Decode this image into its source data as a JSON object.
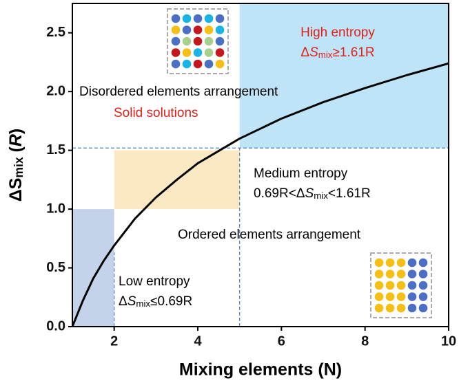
{
  "chart_data": {
    "type": "line",
    "x_label": "Mixing elements (N)",
    "y_label": [
      {
        "text": "ΔS"
      },
      {
        "text": "mix",
        "style": "sub"
      },
      {
        "text": " ("
      },
      {
        "text": "R",
        "style": "italic"
      },
      {
        "text": ")"
      }
    ],
    "x": [
      1,
      1.25,
      1.5,
      1.75,
      2,
      2.5,
      3,
      3.5,
      4,
      5,
      6,
      7,
      8,
      9,
      10
    ],
    "series": [
      {
        "color": "#000000",
        "values": [
          0,
          0.22,
          0.41,
          0.56,
          0.69,
          0.92,
          1.1,
          1.25,
          1.39,
          1.6,
          1.77,
          1.91,
          2.03,
          2.14,
          2.24
        ]
      }
    ],
    "xlim": [
      1,
      10
    ],
    "ylim": [
      0,
      2.75
    ],
    "xticks": [
      2,
      4,
      6,
      8,
      10
    ],
    "yticks": [
      {
        "value": 0,
        "label": "0.0"
      },
      {
        "value": 0.5,
        "label": "0.5"
      },
      {
        "value": 1,
        "label": "1.0"
      },
      {
        "value": 1.5,
        "label": "1.5"
      },
      {
        "value": 2,
        "label": "2.0"
      },
      {
        "value": 2.5,
        "label": "2.5"
      }
    ],
    "regions": [
      {
        "x": [
          1,
          2
        ],
        "y": [
          0,
          1
        ],
        "color": "#c5d3ea"
      },
      {
        "x": [
          2,
          5
        ],
        "y": [
          1,
          1.5
        ],
        "color": "#fbe9c4"
      },
      {
        "x": [
          5,
          10
        ],
        "y": [
          1.52,
          2.75
        ],
        "color": "#bfe4f7"
      }
    ],
    "guides": [
      {
        "x": [
          1,
          10
        ],
        "y": [
          1.52,
          1.52
        ]
      },
      {
        "x": [
          2,
          2
        ],
        "y": [
          0,
          0.63
        ]
      },
      {
        "x": [
          5,
          5
        ],
        "y": [
          0,
          1.52
        ]
      }
    ],
    "guide_color": "#4a7fc1",
    "annotations": [
      {
        "color": "#e0201b",
        "lines": [
          [
            {
              "text": "High entropy"
            }
          ],
          [
            {
              "text": "Δ"
            },
            {
              "text": "S",
              "style": "italic"
            },
            {
              "text": "mix",
              "style": "sub"
            },
            {
              "text": "≥1.61R"
            }
          ]
        ]
      },
      {
        "color": "#000000",
        "lines": [
          [
            {
              "text": "Disordered elements arrangement"
            }
          ]
        ]
      },
      {
        "color": "#e0201b",
        "lines": [
          [
            {
              "text": "Solid solutions"
            }
          ]
        ]
      },
      {
        "color": "#000000",
        "lines": [
          [
            {
              "text": "Medium entropy"
            }
          ],
          [
            {
              "text": "0.69R<Δ"
            },
            {
              "text": "S",
              "style": "italic"
            },
            {
              "text": "mix",
              "style": "sub"
            },
            {
              "text": "<1.61R"
            }
          ]
        ]
      },
      {
        "color": "#000000",
        "lines": [
          [
            {
              "text": "Ordered elements arrangement"
            }
          ]
        ]
      },
      {
        "color": "#000000",
        "lines": [
          [
            {
              "text": "Low entropy"
            }
          ],
          [
            {
              "text": "Δ"
            },
            {
              "text": "S",
              "style": "italic"
            },
            {
              "text": "mix",
              "style": "sub"
            },
            {
              "text": "≤0.69R"
            }
          ]
        ]
      }
    ]
  }
}
